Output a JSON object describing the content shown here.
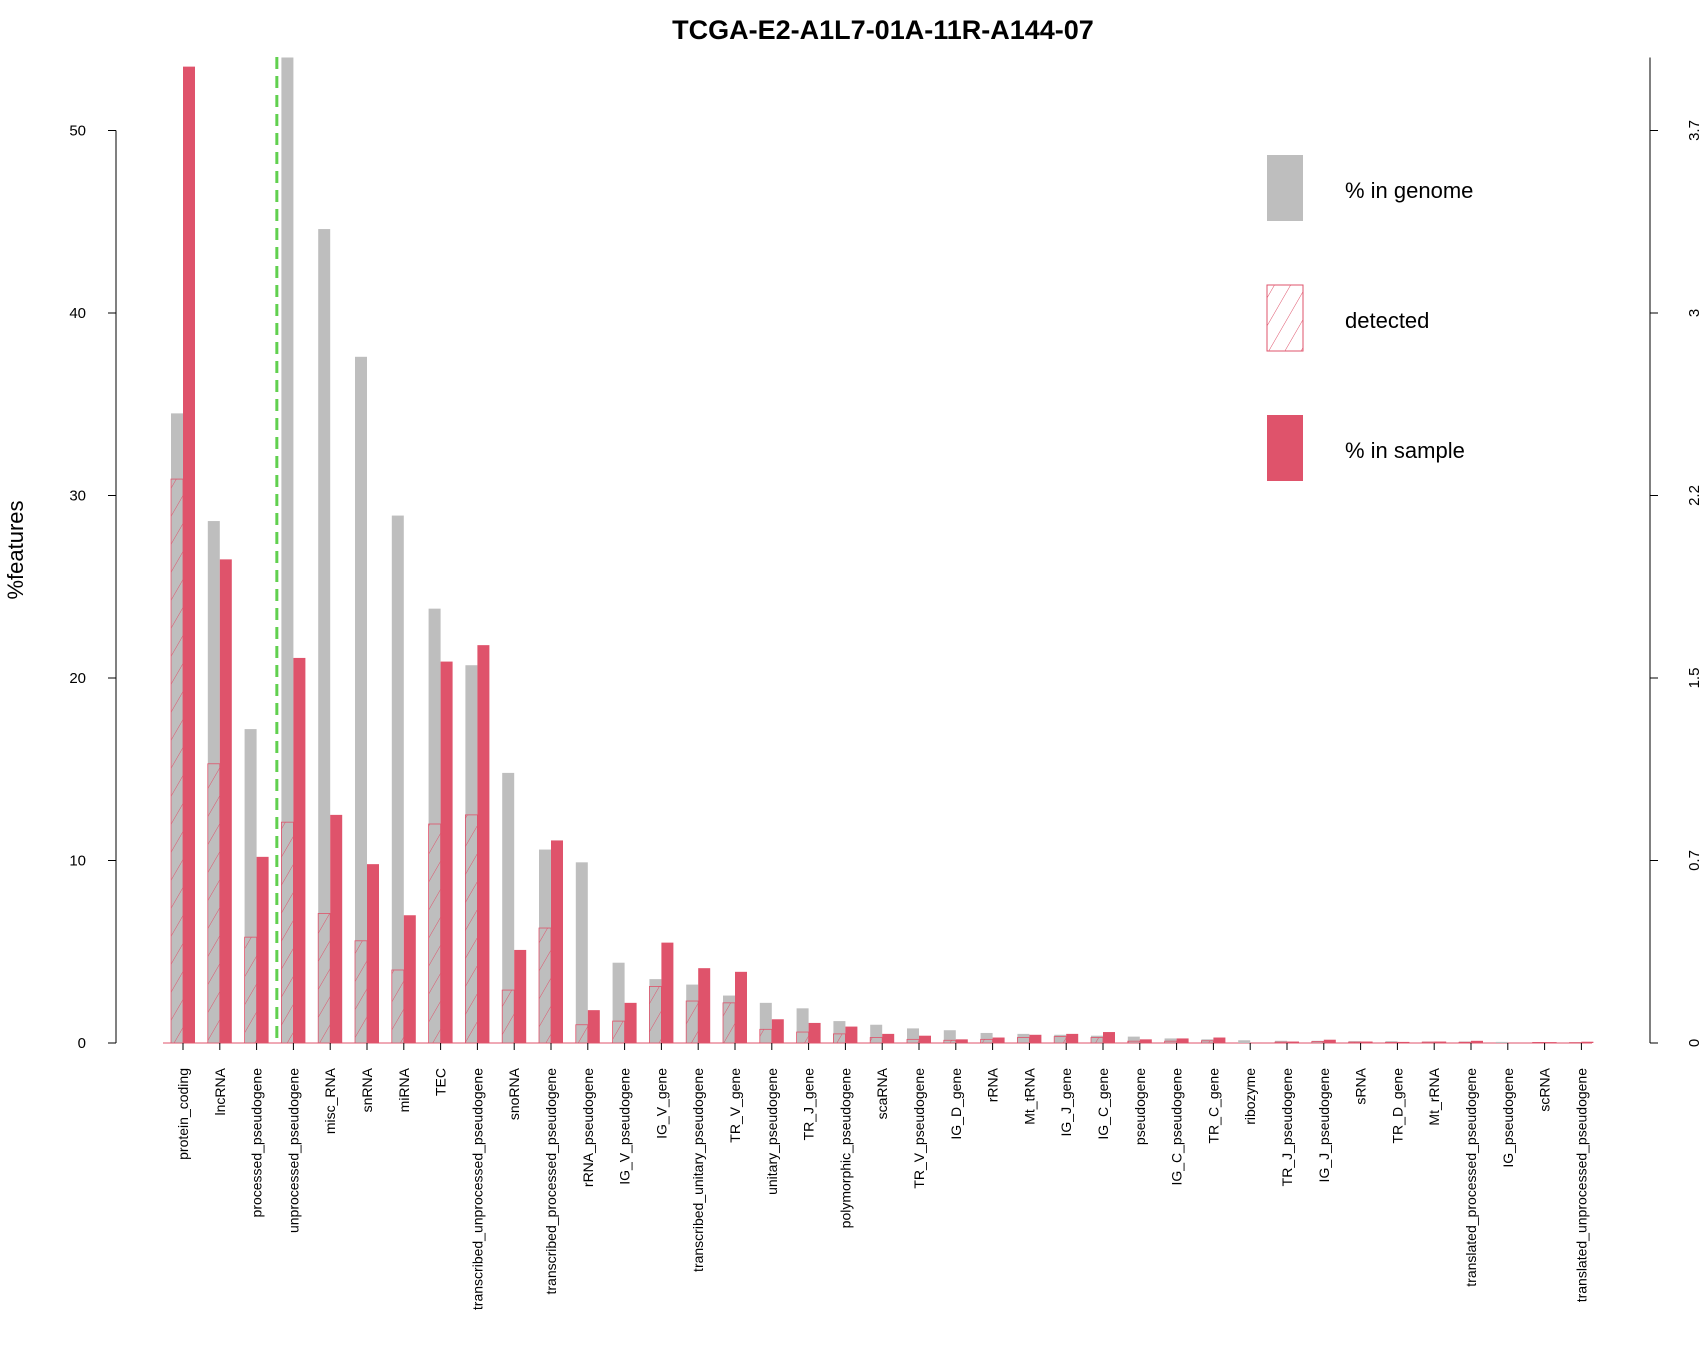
{
  "chart_data": {
    "type": "bar",
    "title": "TCGA-E2-A1L7-01A-11R-A144-07",
    "ylabel": "%features",
    "ylim": [
      0,
      54
    ],
    "yticks": [
      0,
      10,
      20,
      30,
      40,
      50
    ],
    "y2ticks": [
      "0",
      "0.7",
      "1.5",
      "2.2",
      "3",
      "3.7"
    ],
    "categories": [
      "protein_coding",
      "lncRNA",
      "processed_pseudogene",
      "unprocessed_pseudogene",
      "misc_RNA",
      "snRNA",
      "miRNA",
      "TEC",
      "transcribed_unprocessed_pseudogene",
      "snoRNA",
      "transcribed_processed_pseudogene",
      "rRNA_pseudogene",
      "IG_V_pseudogene",
      "IG_V_gene",
      "transcribed_unitary_pseudogene",
      "TR_V_gene",
      "unitary_pseudogene",
      "TR_J_gene",
      "polymorphic_pseudogene",
      "scaRNA",
      "TR_V_pseudogene",
      "IG_D_gene",
      "rRNA",
      "Mt_tRNA",
      "IG_J_gene",
      "IG_C_gene",
      "pseudogene",
      "IG_C_pseudogene",
      "TR_C_gene",
      "ribozyme",
      "TR_J_pseudogene",
      "IG_J_pseudogene",
      "sRNA",
      "TR_D_gene",
      "Mt_rRNA",
      "translated_processed_pseudogene",
      "IG_pseudogene",
      "scRNA",
      "translated_unprocessed_pseudogene"
    ],
    "series": [
      {
        "name": "% in genome",
        "color": "#bebebe",
        "values": [
          34.5,
          28.6,
          17.2,
          54.0,
          44.6,
          37.6,
          28.9,
          23.8,
          20.7,
          14.8,
          10.6,
          9.9,
          4.4,
          3.5,
          3.2,
          2.6,
          2.2,
          1.9,
          1.2,
          1.0,
          0.8,
          0.7,
          0.55,
          0.5,
          0.45,
          0.4,
          0.35,
          0.25,
          0.2,
          0.15,
          0.12,
          0.12,
          0.1,
          0.1,
          0.08,
          0.08,
          0.06,
          0.05,
          0.04
        ]
      },
      {
        "name": "detected",
        "color": "#df536b",
        "values": [
          30.9,
          15.3,
          5.8,
          12.1,
          7.1,
          5.6,
          4.0,
          12.0,
          12.5,
          2.9,
          6.3,
          1.0,
          1.2,
          3.1,
          2.3,
          2.2,
          0.75,
          0.6,
          0.5,
          0.3,
          0.2,
          0.15,
          0.2,
          0.3,
          0.35,
          0.3,
          0.1,
          0.1,
          0.12,
          0.0,
          0.05,
          0.08,
          0.05,
          0.03,
          0.05,
          0.04,
          0.0,
          0.03,
          0.02
        ]
      },
      {
        "name": "% in sample",
        "color": "#df536b",
        "values": [
          53.5,
          26.5,
          10.2,
          21.1,
          12.5,
          9.8,
          7.0,
          20.9,
          21.8,
          5.1,
          11.1,
          1.8,
          2.2,
          5.5,
          4.1,
          3.9,
          1.3,
          1.1,
          0.9,
          0.5,
          0.4,
          0.2,
          0.3,
          0.45,
          0.5,
          0.6,
          0.2,
          0.25,
          0.3,
          0.02,
          0.08,
          0.18,
          0.08,
          0.06,
          0.08,
          0.12,
          0.02,
          0.05,
          0.07
        ]
      }
    ],
    "cutoff_line": {
      "after_category": "processed_pseudogene",
      "color": "#61d04f",
      "style": "dashed"
    },
    "legend": {
      "placement": "top-right"
    }
  }
}
